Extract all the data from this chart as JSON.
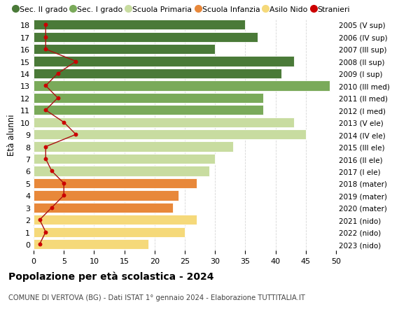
{
  "ages": [
    0,
    1,
    2,
    3,
    4,
    5,
    6,
    7,
    8,
    9,
    10,
    11,
    12,
    13,
    14,
    15,
    16,
    17,
    18
  ],
  "bar_values": [
    19,
    25,
    27,
    23,
    24,
    27,
    29,
    30,
    33,
    45,
    43,
    38,
    38,
    49,
    41,
    43,
    30,
    37,
    35
  ],
  "bar_colors": [
    "#f5d97a",
    "#f5d97a",
    "#f5d97a",
    "#e8883a",
    "#e8883a",
    "#e8883a",
    "#c8dca0",
    "#c8dca0",
    "#c8dca0",
    "#c8dca0",
    "#c8dca0",
    "#7aaa5a",
    "#7aaa5a",
    "#7aaa5a",
    "#4a7a38",
    "#4a7a38",
    "#4a7a38",
    "#4a7a38",
    "#4a7a38"
  ],
  "stranieri_values": [
    1,
    2,
    1,
    3,
    5,
    5,
    3,
    2,
    2,
    7,
    5,
    2,
    4,
    2,
    4,
    7,
    2,
    2,
    2
  ],
  "right_labels": [
    "2023 (nido)",
    "2022 (nido)",
    "2021 (nido)",
    "2020 (mater)",
    "2019 (mater)",
    "2018 (mater)",
    "2017 (I ele)",
    "2016 (II ele)",
    "2015 (III ele)",
    "2014 (IV ele)",
    "2013 (V ele)",
    "2012 (I med)",
    "2011 (II med)",
    "2010 (III med)",
    "2009 (I sup)",
    "2008 (II sup)",
    "2007 (III sup)",
    "2006 (IV sup)",
    "2005 (V sup)"
  ],
  "legend_labels": [
    "Sec. II grado",
    "Sec. I grado",
    "Scuola Primaria",
    "Scuola Infanzia",
    "Asilo Nido",
    "Stranieri"
  ],
  "legend_colors": [
    "#4a7a38",
    "#7aaa5a",
    "#c8dca0",
    "#e8883a",
    "#f5d97a",
    "#cc0000"
  ],
  "ylabel_left": "Età alunni",
  "title": "Popolazione per età scolastica - 2024",
  "subtitle": "COMUNE DI VERTOVA (BG) - Dati ISTAT 1° gennaio 2024 - Elaborazione TUTTITALIA.IT",
  "xlim": [
    0,
    50
  ],
  "xticks": [
    0,
    5,
    10,
    15,
    20,
    25,
    30,
    35,
    40,
    45,
    50
  ],
  "background_color": "#ffffff",
  "grid_color": "#cccccc",
  "bar_edge_color": "#ffffff",
  "stranieri_line_color": "#aa1111",
  "stranieri_dot_color": "#cc0000"
}
